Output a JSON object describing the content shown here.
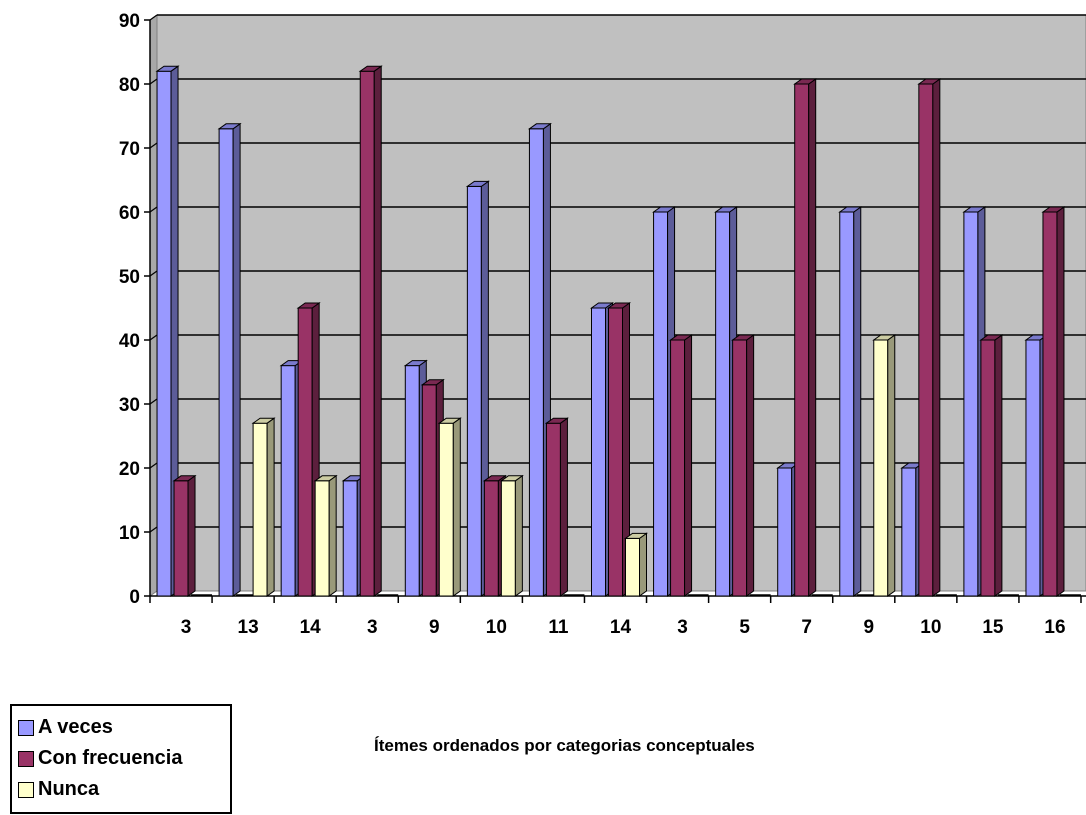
{
  "chart_data": {
    "type": "bar",
    "style": "3d-clustered-column",
    "categories": [
      "3",
      "13",
      "14",
      "3",
      "9",
      "10",
      "11",
      "14",
      "3",
      "5",
      "7",
      "9",
      "10",
      "15",
      "16"
    ],
    "series": [
      {
        "name": "A veces",
        "color": "#9999ff",
        "values": [
          82,
          73,
          36,
          18,
          36,
          64,
          73,
          45,
          60,
          60,
          20,
          60,
          20,
          60,
          40
        ]
      },
      {
        "name": "Con frecuencia",
        "color": "#993366",
        "values": [
          18,
          0,
          45,
          82,
          33,
          18,
          27,
          45,
          40,
          40,
          80,
          0,
          80,
          40,
          60
        ]
      },
      {
        "name": "Nunca",
        "color": "#ffffcc",
        "values": [
          0,
          27,
          18,
          0,
          27,
          18,
          0,
          9,
          0,
          0,
          0,
          40,
          0,
          0,
          0
        ]
      }
    ],
    "ylim": [
      0,
      90
    ],
    "yticks": [
      "0",
      "10",
      "20",
      "30",
      "40",
      "50",
      "60",
      "70",
      "80",
      "90"
    ],
    "xlabel": "Ítemes ordenados por categorias conceptuales",
    "ylabel": "",
    "grid": true,
    "plot_background": "#c0c0c0",
    "legend_position": "bottom-left"
  }
}
